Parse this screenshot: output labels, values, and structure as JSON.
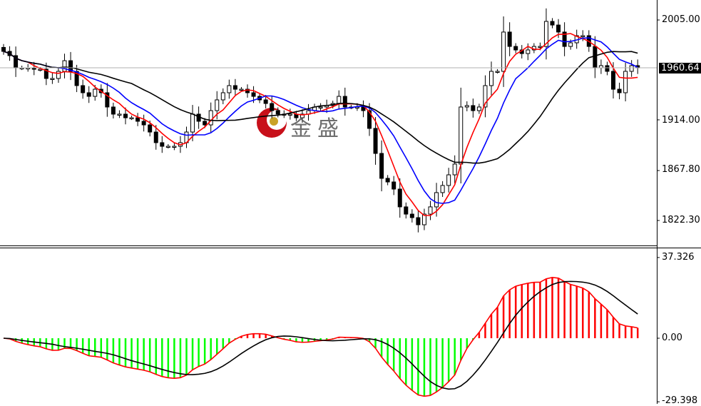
{
  "chart_data": [
    {
      "type": "candlestick",
      "title": "",
      "price_axis_ticks": [
        "2005.00",
        "1914.00",
        "1867.80",
        "1822.30"
      ],
      "price_axis_values": [
        2005.0,
        1914.0,
        1867.8,
        1822.3
      ],
      "current_price": "1960.64",
      "first_open": 1980.0,
      "closes": [
        1976.4,
        1972.5,
        1961.4,
        1961.4,
        1961.4,
        1960.1,
        1960.1,
        1951.7,
        1951.7,
        1958.2,
        1967.9,
        1958.2,
        1945.2,
        1938.7,
        1935.4,
        1941.9,
        1938.7,
        1925.7,
        1919.2,
        1919.2,
        1915.9,
        1915.9,
        1912.7,
        1909.4,
        1902.9,
        1893.2,
        1889.9,
        1889.9,
        1889.9,
        1893.2,
        1902.9,
        1919.2,
        1912.7,
        1909.4,
        1922.4,
        1932.2,
        1938.7,
        1945.2,
        1941.9,
        1941.9,
        1938.7,
        1935.4,
        1932.2,
        1928.9,
        1922.4,
        1919.2,
        1919.2,
        1919.2,
        1915.9,
        1919.2,
        1922.4,
        1925.7,
        1925.7,
        1927.0,
        1928.9,
        1935.4,
        1925.7,
        1925.7,
        1925.7,
        1922.4,
        1906.2,
        1883.4,
        1860.7,
        1857.4,
        1850.9,
        1834.7,
        1828.1,
        1824.9,
        1818.4,
        1828.1,
        1834.7,
        1847.7,
        1854.2,
        1863.9,
        1873.7,
        1925.7,
        1927.0,
        1922.4,
        1925.7,
        1945.2,
        1958.2,
        1958.2,
        1994.0,
        1980.9,
        1977.7,
        1974.4,
        1977.7,
        1980.9,
        1980.9,
        2003.7,
        2000.4,
        1994.0,
        1980.9,
        1984.2,
        1990.7,
        1990.7,
        1980.9,
        1961.4,
        1963.4,
        1958.2,
        1941.9,
        1938.7,
        1958.2,
        1963.4,
        1961.4
      ],
      "moving_averages": [
        {
          "color": "#ff0000"
        },
        {
          "color": "#0000ff"
        },
        {
          "color": "#000000"
        }
      ],
      "bull_color": "#ffffff",
      "bear_color": "#000000"
    },
    {
      "type": "macd",
      "axis_ticks": [
        "37.326",
        "0.00",
        "-29.398"
      ],
      "axis_values": [
        37.326,
        0.0,
        -29.398
      ],
      "positive_color": "#ff0000",
      "negative_color": "#00ff00",
      "macd_color": "#ff0000",
      "signal_color": "#000000"
    }
  ],
  "watermark": {
    "logo_text": "金盛"
  }
}
